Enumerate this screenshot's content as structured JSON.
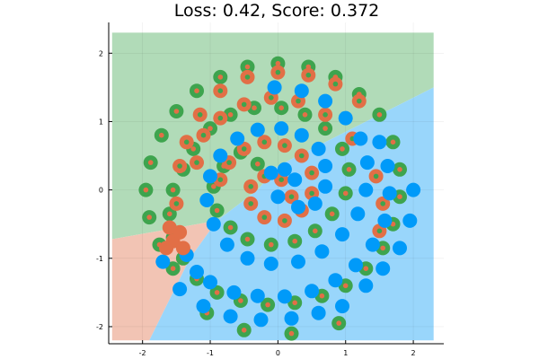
{
  "chart_data": {
    "type": "scatter",
    "title": "Loss: 0.42, Score: 0.372",
    "xlabel": "",
    "ylabel": "",
    "xlim": [
      -2.5,
      2.45
    ],
    "ylim": [
      -2.25,
      2.45
    ],
    "x_ticks": [
      -2,
      -1,
      0,
      1,
      2
    ],
    "y_ticks": [
      -2,
      -1,
      0,
      1,
      2
    ],
    "grid": true,
    "legend": "none",
    "colors": {
      "class_blue": "#009af9",
      "class_orange": "#e26f46",
      "class_green": "#3ea44e",
      "region_blue": "#99d6fb",
      "region_orange": "#f2c4b4",
      "region_green": "#b1dbb8"
    },
    "regions": [
      {
        "class": "green",
        "polygon": [
          [
            -2.45,
            2.3
          ],
          [
            2.3,
            2.3
          ],
          [
            2.3,
            1.5
          ],
          [
            0.0,
            0.35
          ],
          [
            -0.3,
            0.0
          ],
          [
            -0.9,
            -0.45
          ],
          [
            -2.45,
            -0.72
          ]
        ]
      },
      {
        "class": "orange",
        "polygon": [
          [
            -2.45,
            -0.72
          ],
          [
            -0.9,
            -0.45
          ],
          [
            -1.3,
            -1.0
          ],
          [
            -1.9,
            -2.2
          ],
          [
            -2.45,
            -2.2
          ]
        ]
      },
      {
        "class": "blue",
        "polygon": [
          [
            -1.9,
            -2.2
          ],
          [
            -1.3,
            -1.0
          ],
          [
            -0.9,
            -0.45
          ],
          [
            -0.3,
            0.0
          ],
          [
            0.0,
            0.35
          ],
          [
            2.3,
            1.5
          ],
          [
            2.3,
            -2.2
          ]
        ]
      }
    ],
    "series": [
      {
        "true_class": "green",
        "predicted_class": "orange",
        "label": "green spiral, predicted orange",
        "points": [
          [
            -0.3,
            0.38
          ],
          [
            -0.55,
            0.55
          ],
          [
            -0.8,
            0.35
          ],
          [
            -0.95,
            0.05
          ],
          [
            -0.9,
            -0.3
          ],
          [
            -0.7,
            -0.55
          ],
          [
            -0.45,
            -0.72
          ],
          [
            -0.1,
            -0.8
          ],
          [
            0.25,
            -0.75
          ],
          [
            0.55,
            -0.6
          ],
          [
            0.8,
            -0.35
          ],
          [
            1.0,
            -0.05
          ],
          [
            1.05,
            0.3
          ],
          [
            0.95,
            0.6
          ],
          [
            0.7,
            0.9
          ],
          [
            0.4,
            1.1
          ],
          [
            0.05,
            1.2
          ],
          [
            -0.35,
            1.2
          ],
          [
            -0.7,
            1.1
          ],
          [
            -1.0,
            0.9
          ],
          [
            -1.25,
            0.6
          ],
          [
            -1.4,
            0.3
          ],
          [
            -1.55,
            0.0
          ],
          [
            -1.6,
            -0.35
          ],
          [
            -1.55,
            -0.7
          ],
          [
            -1.4,
            -1.0
          ],
          [
            -1.2,
            -1.3
          ],
          [
            -0.9,
            -1.5
          ],
          [
            -0.55,
            -1.62
          ],
          [
            -0.15,
            -1.68
          ],
          [
            0.25,
            -1.65
          ],
          [
            0.65,
            -1.55
          ],
          [
            1.0,
            -1.4
          ],
          [
            1.3,
            -1.15
          ],
          [
            1.55,
            -0.85
          ],
          [
            1.7,
            -0.5
          ],
          [
            1.8,
            -0.1
          ],
          [
            1.8,
            0.3
          ],
          [
            1.7,
            0.7
          ],
          [
            1.5,
            1.1
          ],
          [
            1.2,
            1.4
          ],
          [
            0.85,
            1.65
          ],
          [
            0.45,
            1.8
          ],
          [
            0.0,
            1.85
          ],
          [
            -0.45,
            1.8
          ],
          [
            -0.85,
            1.65
          ],
          [
            -1.2,
            1.45
          ],
          [
            -1.5,
            1.15
          ],
          [
            -1.72,
            0.8
          ],
          [
            -1.88,
            0.4
          ],
          [
            -1.95,
            0.0
          ],
          [
            -1.9,
            -0.4
          ],
          [
            -1.75,
            -0.8
          ],
          [
            -1.55,
            -1.15
          ],
          [
            -1.05,
            -1.8
          ],
          [
            -0.5,
            -2.05
          ],
          [
            0.2,
            -2.1
          ],
          [
            0.9,
            -1.95
          ]
        ]
      },
      {
        "true_class": "orange",
        "predicted_class": "green",
        "label": "orange spiral, predicted green",
        "points": [
          [
            0.2,
            -0.1
          ],
          [
            0.05,
            0.15
          ],
          [
            -0.2,
            0.2
          ],
          [
            -0.4,
            0.05
          ],
          [
            -0.4,
            -0.2
          ],
          [
            -0.2,
            -0.4
          ],
          [
            0.1,
            -0.45
          ],
          [
            0.35,
            -0.3
          ],
          [
            0.5,
            -0.05
          ],
          [
            0.5,
            0.25
          ],
          [
            0.35,
            0.5
          ],
          [
            0.1,
            0.65
          ],
          [
            -0.2,
            0.7
          ],
          [
            -0.5,
            0.6
          ],
          [
            -0.72,
            0.4
          ],
          [
            -0.85,
            0.15
          ],
          [
            -1.2,
            0.4
          ],
          [
            -1.1,
            0.8
          ],
          [
            -0.85,
            1.05
          ],
          [
            -0.5,
            1.25
          ],
          [
            -0.1,
            1.35
          ],
          [
            0.3,
            1.3
          ],
          [
            0.7,
            1.1
          ],
          [
            1.1,
            0.75
          ],
          [
            1.45,
            0.2
          ],
          [
            1.55,
            -0.2
          ],
          [
            1.5,
            -0.6
          ],
          [
            -1.5,
            -0.2
          ],
          [
            -1.45,
            0.35
          ],
          [
            -1.35,
            0.7
          ],
          [
            -1.15,
            1.1
          ],
          [
            -0.85,
            1.45
          ],
          [
            -0.45,
            1.65
          ],
          [
            0.0,
            1.72
          ],
          [
            0.45,
            1.68
          ],
          [
            0.85,
            1.55
          ],
          [
            1.2,
            1.3
          ]
        ]
      },
      {
        "true_class": "blue",
        "predicted_class": "blue",
        "label": "blue spiral, predicted blue",
        "points": [
          [
            0.25,
            0.15
          ],
          [
            0.1,
            0.3
          ],
          [
            -0.1,
            0.25
          ],
          [
            0.0,
            -0.1
          ],
          [
            0.3,
            -0.25
          ],
          [
            0.55,
            -0.2
          ],
          [
            0.7,
            0.05
          ],
          [
            0.7,
            0.35
          ],
          [
            0.6,
            0.6
          ],
          [
            0.35,
            0.8
          ],
          [
            0.05,
            0.9
          ],
          [
            -0.3,
            0.88
          ],
          [
            -0.6,
            0.75
          ],
          [
            -0.85,
            0.5
          ],
          [
            -1.0,
            0.2
          ],
          [
            -1.05,
            -0.15
          ],
          [
            -0.95,
            -0.5
          ],
          [
            -0.75,
            -0.8
          ],
          [
            -0.45,
            -1.0
          ],
          [
            -0.1,
            -1.08
          ],
          [
            0.3,
            -1.05
          ],
          [
            0.65,
            -0.9
          ],
          [
            0.95,
            -0.65
          ],
          [
            1.18,
            -0.35
          ],
          [
            1.3,
            0.0
          ],
          [
            1.32,
            0.4
          ],
          [
            1.22,
            0.75
          ],
          [
            1.0,
            1.05
          ],
          [
            0.7,
            1.3
          ],
          [
            0.35,
            1.45
          ],
          [
            -0.05,
            1.5
          ],
          [
            -1.35,
            -0.95
          ],
          [
            -1.2,
            -1.2
          ],
          [
            -1.0,
            -1.35
          ],
          [
            -0.65,
            -1.5
          ],
          [
            -0.3,
            -1.55
          ],
          [
            0.1,
            -1.56
          ],
          [
            0.5,
            -1.48
          ],
          [
            0.85,
            -1.32
          ],
          [
            1.15,
            -1.1
          ],
          [
            1.4,
            -0.8
          ],
          [
            1.58,
            -0.45
          ],
          [
            1.65,
            -0.05
          ],
          [
            1.62,
            0.35
          ],
          [
            1.5,
            0.7
          ],
          [
            -1.7,
            -1.05
          ],
          [
            -1.45,
            -1.45
          ],
          [
            -1.1,
            -1.7
          ],
          [
            -0.7,
            -1.85
          ],
          [
            -0.25,
            -1.9
          ],
          [
            0.2,
            -1.88
          ],
          [
            0.6,
            -1.8
          ],
          [
            0.95,
            -1.7
          ],
          [
            1.3,
            -1.4
          ],
          [
            1.55,
            -1.15
          ],
          [
            1.8,
            -0.85
          ],
          [
            1.95,
            -0.45
          ],
          [
            2.0,
            0.0
          ]
        ]
      },
      {
        "true_class": "orange",
        "predicted_class": "orange",
        "label": "orange spiral, predicted orange",
        "points": [
          [
            -1.6,
            -0.55
          ],
          [
            -1.55,
            -0.75
          ],
          [
            -1.45,
            -0.62
          ],
          [
            -1.4,
            -0.85
          ],
          [
            -1.65,
            -0.85
          ]
        ]
      }
    ]
  }
}
